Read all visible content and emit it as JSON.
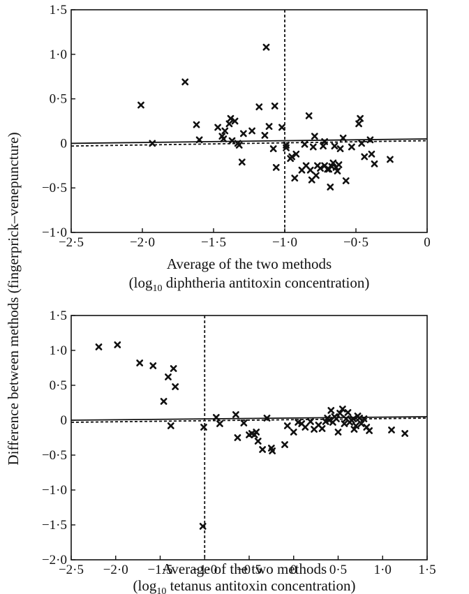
{
  "figure": {
    "ylabel": "Difference between methods (fingerprick–venepuncture)"
  },
  "chart_data": [
    {
      "type": "scatter",
      "id": "diphtheria",
      "title": "",
      "xlabel": "Average of the two methods",
      "xlabel_sub_pre": "(log",
      "xlabel_sub_base": "10",
      "xlabel_sub_post": " diphtheria antitoxin concentration)",
      "xlim": [
        -2.5,
        0
      ],
      "ylim": [
        -1.0,
        1.5
      ],
      "xticks": [
        {
          "value": -2.5,
          "label": "−2·5"
        },
        {
          "value": -2.0,
          "label": "−2·0"
        },
        {
          "value": -1.5,
          "label": "−1·5"
        },
        {
          "value": -1.0,
          "label": "−1·0"
        },
        {
          "value": -0.5,
          "label": "−0·5"
        },
        {
          "value": 0.0,
          "label": "0"
        }
      ],
      "yticks": [
        {
          "value": 1.5,
          "label": "1·5"
        },
        {
          "value": 1.0,
          "label": "1·0"
        },
        {
          "value": 0.5,
          "label": "0·5"
        },
        {
          "value": 0.0,
          "label": "0"
        },
        {
          "value": -0.5,
          "label": "−0·5"
        },
        {
          "value": -1.0,
          "label": "−1·0"
        }
      ],
      "vline_x": -1.0,
      "solid_line": [
        [
          -2.5,
          0.0
        ],
        [
          0.0,
          0.05
        ]
      ],
      "dashed_line": [
        [
          -2.5,
          -0.03
        ],
        [
          0.0,
          0.03
        ]
      ],
      "points": [
        [
          -2.01,
          0.43
        ],
        [
          -1.93,
          0.0
        ],
        [
          -1.7,
          0.69
        ],
        [
          -1.62,
          0.21
        ],
        [
          -1.6,
          0.04
        ],
        [
          -1.47,
          0.18
        ],
        [
          -1.44,
          0.08
        ],
        [
          -1.43,
          0.05
        ],
        [
          -1.42,
          0.14
        ],
        [
          -1.39,
          0.22
        ],
        [
          -1.38,
          0.28
        ],
        [
          -1.37,
          0.03
        ],
        [
          -1.35,
          0.25
        ],
        [
          -1.33,
          0.0
        ],
        [
          -1.32,
          -0.02
        ],
        [
          -1.3,
          -0.21
        ],
        [
          -1.29,
          0.11
        ],
        [
          -1.23,
          0.14
        ],
        [
          -1.18,
          0.41
        ],
        [
          -1.14,
          0.09
        ],
        [
          -1.13,
          1.08
        ],
        [
          -1.11,
          0.19
        ],
        [
          -1.08,
          -0.06
        ],
        [
          -1.07,
          0.42
        ],
        [
          -1.06,
          -0.27
        ],
        [
          -1.02,
          0.18
        ],
        [
          -0.99,
          -0.02
        ],
        [
          -0.99,
          -0.05
        ],
        [
          -0.96,
          -0.17
        ],
        [
          -0.95,
          -0.15
        ],
        [
          -0.93,
          -0.39
        ],
        [
          -0.92,
          -0.12
        ],
        [
          -0.88,
          -0.3
        ],
        [
          -0.86,
          -0.01
        ],
        [
          -0.85,
          -0.25
        ],
        [
          -0.83,
          0.31
        ],
        [
          -0.82,
          -0.3
        ],
        [
          -0.81,
          -0.41
        ],
        [
          -0.8,
          -0.04
        ],
        [
          -0.79,
          0.08
        ],
        [
          -0.78,
          -0.36
        ],
        [
          -0.77,
          -0.25
        ],
        [
          -0.75,
          -0.28
        ],
        [
          -0.73,
          -0.03
        ],
        [
          -0.72,
          0.02
        ],
        [
          -0.72,
          -0.25
        ],
        [
          -0.7,
          -0.29
        ],
        [
          -0.69,
          -0.29
        ],
        [
          -0.68,
          -0.49
        ],
        [
          -0.67,
          -0.26
        ],
        [
          -0.66,
          -0.22
        ],
        [
          -0.65,
          -0.03
        ],
        [
          -0.64,
          -0.27
        ],
        [
          -0.63,
          -0.31
        ],
        [
          -0.62,
          -0.24
        ],
        [
          -0.61,
          -0.06
        ],
        [
          -0.59,
          0.06
        ],
        [
          -0.57,
          -0.42
        ],
        [
          -0.53,
          -0.04
        ],
        [
          -0.48,
          0.22
        ],
        [
          -0.47,
          0.28
        ],
        [
          -0.46,
          0.0
        ],
        [
          -0.44,
          -0.15
        ],
        [
          -0.4,
          0.04
        ],
        [
          -0.39,
          -0.12
        ],
        [
          -0.37,
          -0.23
        ],
        [
          -0.26,
          -0.18
        ]
      ]
    },
    {
      "type": "scatter",
      "id": "tetanus",
      "title": "",
      "xlabel": "Average of the two methods",
      "xlabel_sub_pre": "(log",
      "xlabel_sub_base": "10",
      "xlabel_sub_post": " tetanus antitoxin concentration)",
      "xlim": [
        -2.5,
        1.5
      ],
      "ylim": [
        -2.0,
        1.5
      ],
      "xticks": [
        {
          "value": -2.5,
          "label": "−2·5"
        },
        {
          "value": -2.0,
          "label": "−2·0"
        },
        {
          "value": -1.5,
          "label": "−1·5"
        },
        {
          "value": -1.0,
          "label": "−1·0"
        },
        {
          "value": -0.5,
          "label": "−0·5"
        },
        {
          "value": 0.0,
          "label": "0"
        },
        {
          "value": 0.5,
          "label": "0·5"
        },
        {
          "value": 1.0,
          "label": "1·0"
        },
        {
          "value": 1.5,
          "label": "1·5"
        }
      ],
      "yticks": [
        {
          "value": 1.5,
          "label": "1·5"
        },
        {
          "value": 1.0,
          "label": "1·0"
        },
        {
          "value": 0.5,
          "label": "0·5"
        },
        {
          "value": 0.0,
          "label": "0"
        },
        {
          "value": -0.5,
          "label": "−0·5"
        },
        {
          "value": -1.0,
          "label": "−1·0"
        },
        {
          "value": -1.5,
          "label": "−1·5"
        },
        {
          "value": -2.0,
          "label": "−2·0"
        }
      ],
      "vline_x": -1.0,
      "solid_line": [
        [
          -2.5,
          0.0
        ],
        [
          1.5,
          0.05
        ]
      ],
      "dashed_line": [
        [
          -2.5,
          -0.03
        ],
        [
          1.5,
          0.03
        ]
      ],
      "points": [
        [
          -2.19,
          1.05
        ],
        [
          -1.98,
          1.08
        ],
        [
          -1.73,
          0.82
        ],
        [
          -1.58,
          0.78
        ],
        [
          -1.46,
          0.27
        ],
        [
          -1.41,
          0.62
        ],
        [
          -1.38,
          -0.08
        ],
        [
          -1.35,
          0.74
        ],
        [
          -1.33,
          0.48
        ],
        [
          -1.01,
          -0.1
        ],
        [
          -1.02,
          -1.52
        ],
        [
          -0.87,
          0.04
        ],
        [
          -0.83,
          -0.05
        ],
        [
          -0.65,
          0.08
        ],
        [
          -0.63,
          -0.25
        ],
        [
          -0.56,
          -0.04
        ],
        [
          -0.5,
          -0.21
        ],
        [
          -0.47,
          -0.19
        ],
        [
          -0.44,
          -0.21
        ],
        [
          -0.42,
          -0.17
        ],
        [
          -0.4,
          -0.3
        ],
        [
          -0.35,
          -0.42
        ],
        [
          -0.3,
          0.03
        ],
        [
          -0.25,
          -0.4
        ],
        [
          -0.24,
          -0.44
        ],
        [
          -0.1,
          -0.35
        ],
        [
          -0.07,
          -0.08
        ],
        [
          0.0,
          -0.17
        ],
        [
          0.05,
          -0.03
        ],
        [
          0.09,
          -0.05
        ],
        [
          0.13,
          -0.1
        ],
        [
          0.19,
          -0.02
        ],
        [
          0.23,
          -0.13
        ],
        [
          0.28,
          -0.07
        ],
        [
          0.32,
          -0.12
        ],
        [
          0.36,
          -0.02
        ],
        [
          0.38,
          0.03
        ],
        [
          0.4,
          0.0
        ],
        [
          0.42,
          0.14
        ],
        [
          0.44,
          -0.03
        ],
        [
          0.46,
          0.05
        ],
        [
          0.48,
          0.02
        ],
        [
          0.5,
          -0.17
        ],
        [
          0.52,
          0.1
        ],
        [
          0.55,
          0.16
        ],
        [
          0.57,
          -0.05
        ],
        [
          0.59,
          0.02
        ],
        [
          0.61,
          0.11
        ],
        [
          0.63,
          -0.03
        ],
        [
          0.65,
          0.0
        ],
        [
          0.67,
          0.02
        ],
        [
          0.68,
          -0.13
        ],
        [
          0.7,
          -0.08
        ],
        [
          0.72,
          0.06
        ],
        [
          0.74,
          0.03
        ],
        [
          0.76,
          -0.05
        ],
        [
          0.79,
          0.02
        ],
        [
          0.82,
          -0.1
        ],
        [
          0.85,
          -0.15
        ],
        [
          1.1,
          -0.14
        ],
        [
          1.25,
          -0.19
        ]
      ]
    }
  ]
}
